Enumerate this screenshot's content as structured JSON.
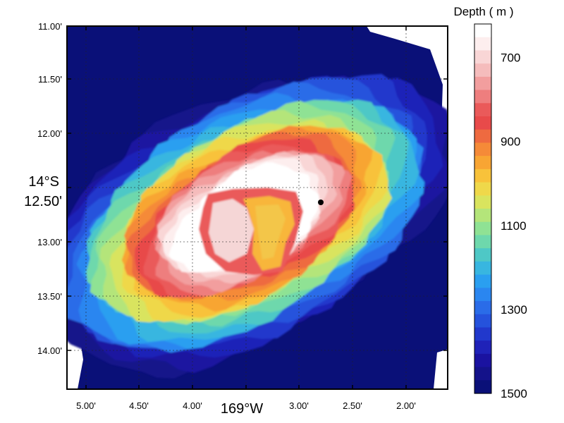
{
  "map": {
    "y_axis": {
      "ticks": [
        "11.00'",
        "11.50'",
        "12.00'",
        "12.50'",
        "13.00'",
        "13.50'",
        "14.00'"
      ],
      "degree_label": "14°S"
    },
    "x_axis": {
      "ticks": [
        "5.00'",
        "4.50'",
        "4.00'",
        "3.00'",
        "2.50'",
        "2.00'"
      ],
      "degree_label": "169°W"
    },
    "marker": {
      "type": "point",
      "color": "#000000"
    },
    "colorbar": {
      "title": "Depth ( m )",
      "labels": [
        "700",
        "900",
        "1100",
        "1300",
        "1500"
      ],
      "range": [
        620,
        1500
      ],
      "colors": [
        "#ffffff",
        "#fdeeee",
        "#f9d6d6",
        "#f5bcbc",
        "#f29e9e",
        "#ee7e7e",
        "#ea5a5a",
        "#e84a4a",
        "#ee6a40",
        "#f58a38",
        "#f8a533",
        "#f8c23a",
        "#efd84a",
        "#d9e45e",
        "#b4e57a",
        "#8fe294",
        "#6ed8ac",
        "#4ec8c6",
        "#38b6e0",
        "#2a9ff0",
        "#2a86f0",
        "#2a6ce8",
        "#2552dc",
        "#2138cc",
        "#1f22b8",
        "#1a12a0",
        "#14128a",
        "#0a1078"
      ]
    },
    "depth_scale_colors": {
      "deep": "#0a1078",
      "shallow": "#ffffff"
    }
  }
}
